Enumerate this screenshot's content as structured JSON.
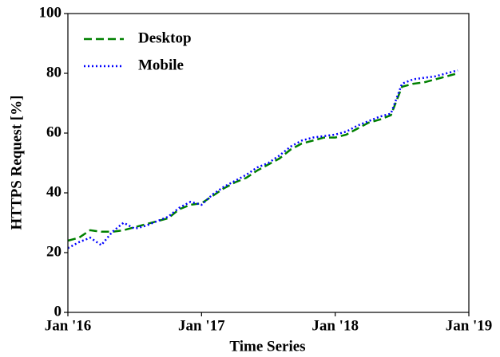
{
  "chart_data": {
    "type": "line",
    "xlabel": "Time Series",
    "ylabel": "HTTPS Request [%]",
    "x": [
      "2016-01",
      "2016-02",
      "2016-03",
      "2016-04",
      "2016-05",
      "2016-06",
      "2016-07",
      "2016-08",
      "2016-09",
      "2016-10",
      "2016-11",
      "2016-12",
      "2017-01",
      "2017-02",
      "2017-03",
      "2017-04",
      "2017-05",
      "2017-06",
      "2017-07",
      "2017-08",
      "2017-09",
      "2017-10",
      "2017-11",
      "2017-12",
      "2018-01",
      "2018-02",
      "2018-03",
      "2018-04",
      "2018-05",
      "2018-06",
      "2018-07",
      "2018-08",
      "2018-09",
      "2018-10",
      "2018-11",
      "2018-12"
    ],
    "series": [
      {
        "name": "Desktop",
        "color": "#008000",
        "dash": "dashed",
        "values": [
          24,
          25,
          27.5,
          27,
          27,
          27.5,
          28.5,
          29.5,
          30.5,
          31.5,
          34.5,
          36,
          36.5,
          39,
          41.5,
          43.5,
          45,
          47.5,
          49.5,
          51.5,
          54.5,
          56.5,
          57.5,
          58.5,
          58.5,
          59.5,
          61.5,
          63.5,
          64.5,
          66,
          75.5,
          76.5,
          77,
          78,
          79,
          80
        ]
      },
      {
        "name": "Mobile",
        "color": "#0000ff",
        "dash": "dotted",
        "values": [
          21.5,
          23.5,
          25,
          22.5,
          27,
          30,
          28,
          29,
          30.5,
          32,
          35,
          37,
          36,
          39.5,
          42,
          44,
          46,
          48.5,
          50,
          52.5,
          55.5,
          57.5,
          58.5,
          59,
          59.5,
          60.5,
          62.5,
          64,
          65.5,
          66.5,
          76.5,
          78,
          78.5,
          79,
          80,
          81
        ]
      }
    ],
    "xlim": [
      "2016-01",
      "2019-01"
    ],
    "xticks": [
      {
        "value": "2016-01",
        "label": "Jan '16"
      },
      {
        "value": "2017-01",
        "label": "Jan '17"
      },
      {
        "value": "2018-01",
        "label": "Jan '18"
      },
      {
        "value": "2019-01",
        "label": "Jan '19"
      }
    ],
    "ylim": [
      0,
      100
    ],
    "yticks": [
      0,
      20,
      40,
      60,
      80,
      100
    ],
    "grid": false,
    "legend": "upper left"
  }
}
